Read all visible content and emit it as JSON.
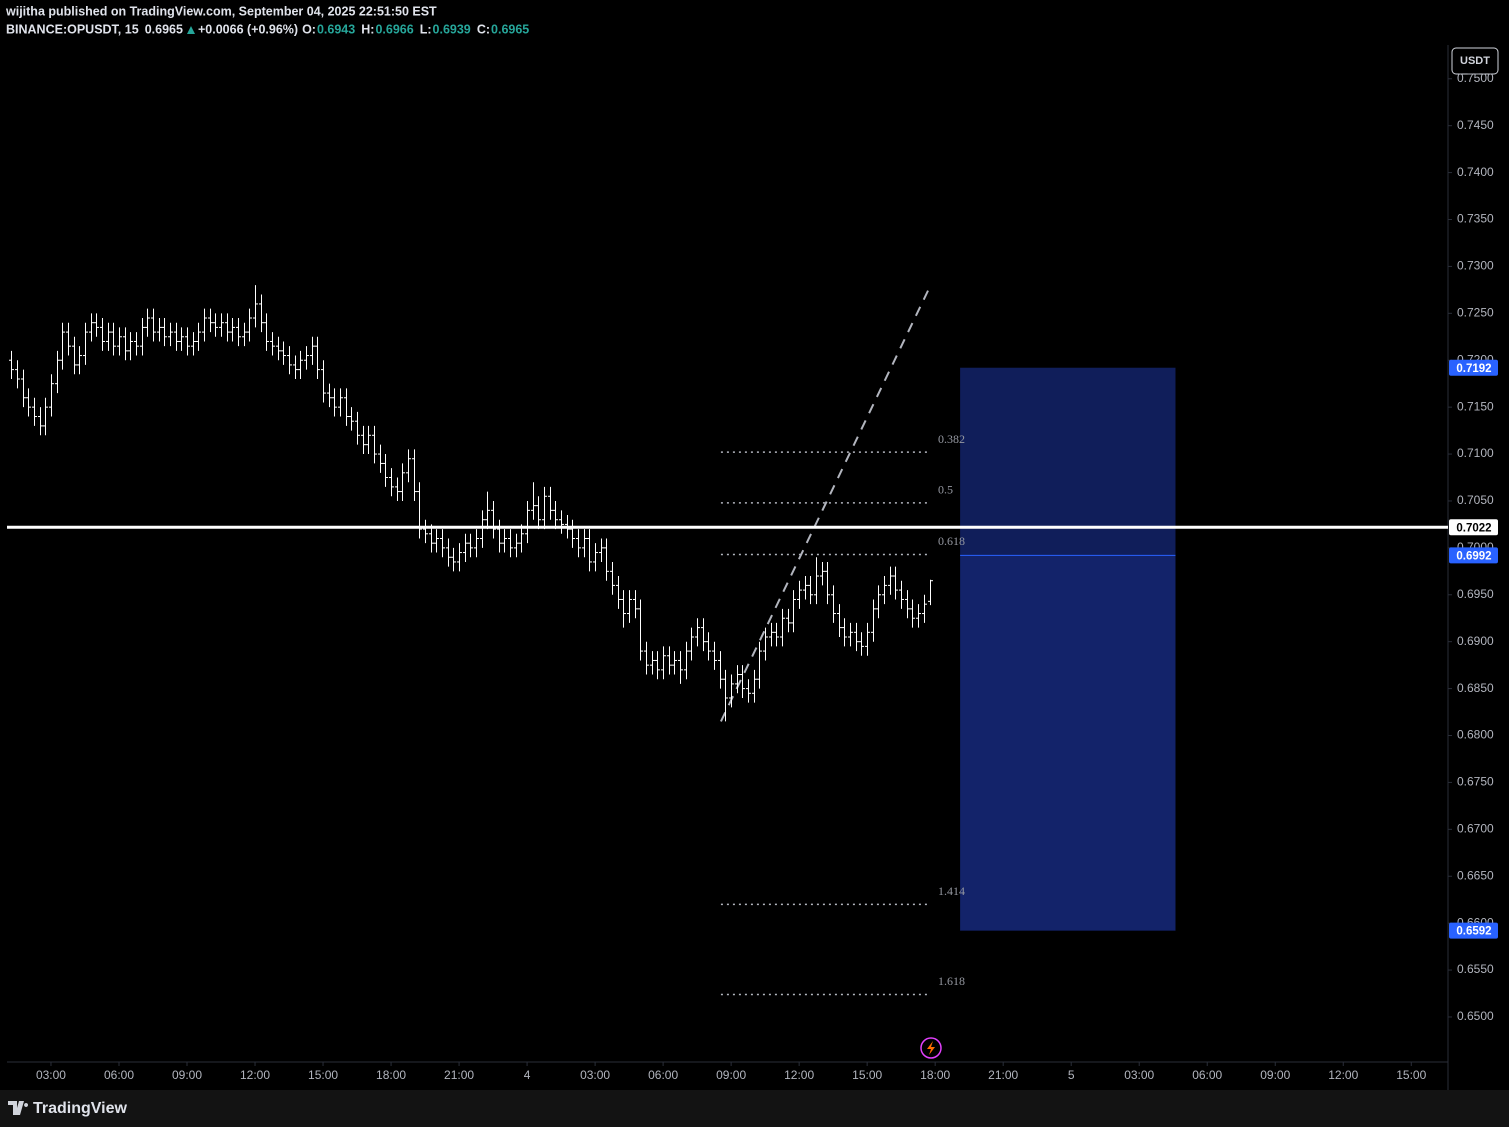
{
  "header": {
    "published": "wijitha published on TradingView.com, September 04, 2025 22:51:50 EST",
    "symbol": "BINANCE:OPUSDT, 15",
    "last": "0.6965",
    "change": "+0.0066 (+0.96%)",
    "ohlc": [
      {
        "label": "O:",
        "value": "0.6943"
      },
      {
        "label": "H:",
        "value": "0.6966"
      },
      {
        "label": "L:",
        "value": "0.6939"
      },
      {
        "label": "C:",
        "value": "0.6965"
      }
    ]
  },
  "currency": "USDT",
  "footer": {
    "brand": "TradingView"
  },
  "chart_data": {
    "type": "ohlc",
    "color": "#ffffff",
    "x": [
      1.25,
      1.5,
      1.75,
      2,
      2.25,
      2.5,
      2.75,
      3,
      3.25,
      3.5,
      3.75,
      4,
      4.25,
      4.5,
      4.75,
      5,
      5.25,
      5.5,
      5.75,
      6,
      6.25,
      6.5,
      6.75,
      7,
      7.25,
      7.5,
      7.75,
      8,
      8.25,
      8.5,
      8.75,
      9,
      9.25,
      9.5,
      9.75,
      10,
      10.25,
      10.5,
      10.75,
      11,
      11.25,
      11.5,
      11.75,
      12,
      12.25,
      12.5,
      12.75,
      13,
      13.25,
      13.5,
      13.75,
      14,
      14.25,
      14.5,
      14.75,
      15,
      15.25,
      15.5,
      15.75,
      16,
      16.25,
      16.5,
      16.75,
      17,
      17.25,
      17.5,
      17.75,
      18,
      18.25,
      18.5,
      18.75,
      19,
      19.25,
      19.5,
      19.75,
      20,
      20.25,
      20.5,
      20.75,
      21,
      21.25,
      21.5,
      21.75,
      22,
      22.25,
      22.5,
      22.75,
      23,
      23.25,
      23.5,
      23.75,
      24,
      24.25,
      24.5,
      24.75,
      25,
      25.25,
      25.5,
      25.75,
      26,
      26.25,
      26.5,
      26.75,
      27,
      27.25,
      27.5,
      27.75,
      28,
      28.25,
      28.5,
      28.75,
      29,
      29.25,
      29.5,
      29.75,
      30,
      30.25,
      30.5,
      30.75,
      31,
      31.25,
      31.5,
      31.75,
      32,
      32.25,
      32.5,
      32.75,
      33,
      33.25,
      33.5,
      33.75,
      34,
      34.25,
      34.5,
      34.75,
      35,
      35.25,
      35.5,
      35.75,
      36,
      36.25,
      36.5,
      36.75,
      37,
      37.25,
      37.5,
      37.75,
      38,
      38.25,
      38.5,
      38.75,
      39,
      39.25,
      39.5,
      39.75,
      40,
      40.25,
      40.5,
      40.75,
      41,
      41.25,
      41.5,
      41.75
    ],
    "open": [
      0.72,
      0.719,
      0.718,
      0.716,
      0.715,
      0.714,
      0.713,
      0.715,
      0.7175,
      0.72,
      0.723,
      0.7215,
      0.7195,
      0.7205,
      0.723,
      0.724,
      0.7235,
      0.722,
      0.723,
      0.7215,
      0.7225,
      0.721,
      0.722,
      0.7215,
      0.7235,
      0.7245,
      0.723,
      0.7235,
      0.7225,
      0.723,
      0.722,
      0.7225,
      0.7215,
      0.722,
      0.723,
      0.7245,
      0.724,
      0.7235,
      0.724,
      0.723,
      0.7235,
      0.7225,
      0.723,
      0.7245,
      0.726,
      0.724,
      0.722,
      0.7215,
      0.721,
      0.7205,
      0.7195,
      0.719,
      0.72,
      0.7205,
      0.7215,
      0.719,
      0.7165,
      0.716,
      0.715,
      0.716,
      0.714,
      0.7135,
      0.712,
      0.711,
      0.712,
      0.71,
      0.709,
      0.7075,
      0.7065,
      0.706,
      0.708,
      0.7095,
      0.706,
      0.702,
      0.7015,
      0.7005,
      0.701,
      0.7,
      0.699,
      0.6985,
      0.6995,
      0.7005,
      0.7,
      0.701,
      0.703,
      0.704,
      0.702,
      0.7005,
      0.701,
      0.7,
      0.7005,
      0.7015,
      0.704,
      0.7045,
      0.703,
      0.7055,
      0.704,
      0.703,
      0.7025,
      0.702,
      0.701,
      0.7,
      0.701,
      0.6985,
      0.6995,
      0.7,
      0.6975,
      0.696,
      0.6945,
      0.693,
      0.6945,
      0.6935,
      0.689,
      0.6875,
      0.688,
      0.687,
      0.6885,
      0.6875,
      0.688,
      0.687,
      0.689,
      0.6905,
      0.6915,
      0.69,
      0.689,
      0.688,
      0.686,
      0.684,
      0.6855,
      0.6865,
      0.685,
      0.6845,
      0.686,
      0.689,
      0.6905,
      0.691,
      0.6905,
      0.6925,
      0.692,
      0.6945,
      0.6955,
      0.696,
      0.695,
      0.697,
      0.6975,
      0.695,
      0.693,
      0.6915,
      0.6905,
      0.691,
      0.69,
      0.6895,
      0.691,
      0.6935,
      0.695,
      0.696,
      0.697,
      0.6955,
      0.6945,
      0.6935,
      0.6925,
      0.693,
      0.6943
    ],
    "high": [
      0.721,
      0.72,
      0.719,
      0.717,
      0.716,
      0.715,
      0.716,
      0.7185,
      0.721,
      0.724,
      0.724,
      0.7225,
      0.7215,
      0.724,
      0.725,
      0.725,
      0.7245,
      0.724,
      0.724,
      0.7235,
      0.7235,
      0.723,
      0.723,
      0.7245,
      0.7255,
      0.7255,
      0.7245,
      0.7245,
      0.724,
      0.724,
      0.7235,
      0.7235,
      0.723,
      0.724,
      0.7255,
      0.7255,
      0.725,
      0.725,
      0.725,
      0.7245,
      0.7245,
      0.724,
      0.7255,
      0.728,
      0.727,
      0.725,
      0.723,
      0.7225,
      0.722,
      0.7215,
      0.7205,
      0.721,
      0.7215,
      0.7225,
      0.7225,
      0.72,
      0.7175,
      0.717,
      0.717,
      0.717,
      0.715,
      0.7145,
      0.713,
      0.713,
      0.713,
      0.711,
      0.71,
      0.7085,
      0.7075,
      0.709,
      0.7105,
      0.7105,
      0.707,
      0.703,
      0.7025,
      0.702,
      0.702,
      0.701,
      0.7,
      0.7005,
      0.7015,
      0.7015,
      0.702,
      0.704,
      0.706,
      0.705,
      0.703,
      0.702,
      0.702,
      0.7015,
      0.7025,
      0.705,
      0.707,
      0.7055,
      0.7065,
      0.7065,
      0.705,
      0.704,
      0.7035,
      0.703,
      0.702,
      0.702,
      0.702,
      0.7005,
      0.701,
      0.701,
      0.6985,
      0.697,
      0.6955,
      0.6955,
      0.6955,
      0.6945,
      0.69,
      0.689,
      0.689,
      0.6895,
      0.6895,
      0.689,
      0.689,
      0.69,
      0.6915,
      0.6925,
      0.6925,
      0.691,
      0.69,
      0.689,
      0.687,
      0.6865,
      0.6875,
      0.6875,
      0.686,
      0.687,
      0.69,
      0.6915,
      0.692,
      0.692,
      0.6935,
      0.6935,
      0.6955,
      0.6965,
      0.697,
      0.697,
      0.699,
      0.6985,
      0.6985,
      0.696,
      0.694,
      0.6925,
      0.692,
      0.692,
      0.691,
      0.692,
      0.6945,
      0.696,
      0.697,
      0.698,
      0.698,
      0.6965,
      0.6955,
      0.6945,
      0.694,
      0.695,
      0.6966
    ],
    "low": [
      0.718,
      0.717,
      0.715,
      0.714,
      0.713,
      0.712,
      0.712,
      0.714,
      0.7165,
      0.719,
      0.7205,
      0.7185,
      0.7185,
      0.7195,
      0.722,
      0.7225,
      0.721,
      0.721,
      0.7205,
      0.7205,
      0.72,
      0.72,
      0.7205,
      0.7205,
      0.7225,
      0.722,
      0.722,
      0.7215,
      0.7215,
      0.721,
      0.721,
      0.7205,
      0.7205,
      0.721,
      0.722,
      0.723,
      0.7225,
      0.7225,
      0.722,
      0.722,
      0.7215,
      0.7215,
      0.722,
      0.7235,
      0.723,
      0.721,
      0.7205,
      0.72,
      0.7195,
      0.7185,
      0.718,
      0.718,
      0.719,
      0.7195,
      0.718,
      0.7155,
      0.715,
      0.714,
      0.714,
      0.713,
      0.7125,
      0.711,
      0.71,
      0.71,
      0.709,
      0.708,
      0.7065,
      0.7055,
      0.705,
      0.705,
      0.707,
      0.705,
      0.701,
      0.7005,
      0.6995,
      0.6995,
      0.699,
      0.698,
      0.6975,
      0.6975,
      0.6985,
      0.699,
      0.699,
      0.7,
      0.702,
      0.701,
      0.6995,
      0.6995,
      0.699,
      0.699,
      0.6995,
      0.7005,
      0.703,
      0.702,
      0.702,
      0.703,
      0.702,
      0.7015,
      0.701,
      0.7,
      0.699,
      0.699,
      0.6975,
      0.6975,
      0.6985,
      0.6965,
      0.695,
      0.6935,
      0.6915,
      0.692,
      0.6925,
      0.688,
      0.6865,
      0.6865,
      0.686,
      0.686,
      0.6865,
      0.6865,
      0.6855,
      0.686,
      0.688,
      0.6895,
      0.689,
      0.688,
      0.687,
      0.685,
      0.6815,
      0.683,
      0.6845,
      0.684,
      0.6835,
      0.6835,
      0.685,
      0.688,
      0.6895,
      0.6895,
      0.6895,
      0.691,
      0.691,
      0.6935,
      0.6945,
      0.694,
      0.694,
      0.696,
      0.694,
      0.692,
      0.6905,
      0.6895,
      0.6895,
      0.689,
      0.6885,
      0.6885,
      0.69,
      0.6925,
      0.694,
      0.695,
      0.6945,
      0.6935,
      0.6925,
      0.6915,
      0.6915,
      0.692,
      0.6939
    ],
    "close": [
      0.719,
      0.718,
      0.716,
      0.715,
      0.714,
      0.713,
      0.715,
      0.7175,
      0.72,
      0.723,
      0.7215,
      0.7195,
      0.7205,
      0.723,
      0.724,
      0.7235,
      0.722,
      0.723,
      0.7215,
      0.7225,
      0.721,
      0.722,
      0.7215,
      0.7235,
      0.7245,
      0.723,
      0.7235,
      0.7225,
      0.723,
      0.722,
      0.7225,
      0.7215,
      0.722,
      0.723,
      0.7245,
      0.724,
      0.7235,
      0.724,
      0.723,
      0.7235,
      0.7225,
      0.723,
      0.7245,
      0.726,
      0.724,
      0.722,
      0.7215,
      0.721,
      0.7205,
      0.7195,
      0.719,
      0.72,
      0.7205,
      0.7215,
      0.719,
      0.7165,
      0.716,
      0.715,
      0.716,
      0.714,
      0.7135,
      0.712,
      0.711,
      0.712,
      0.71,
      0.709,
      0.7075,
      0.7065,
      0.706,
      0.708,
      0.7095,
      0.706,
      0.702,
      0.7015,
      0.7005,
      0.701,
      0.7,
      0.699,
      0.6985,
      0.6995,
      0.7005,
      0.7,
      0.701,
      0.703,
      0.704,
      0.702,
      0.7005,
      0.701,
      0.7,
      0.7005,
      0.7015,
      0.704,
      0.7045,
      0.703,
      0.7055,
      0.704,
      0.703,
      0.7025,
      0.702,
      0.701,
      0.7,
      0.701,
      0.6985,
      0.6995,
      0.7,
      0.6975,
      0.696,
      0.6945,
      0.693,
      0.6945,
      0.6935,
      0.689,
      0.6875,
      0.688,
      0.687,
      0.6885,
      0.6875,
      0.688,
      0.687,
      0.689,
      0.6905,
      0.6915,
      0.69,
      0.689,
      0.688,
      0.686,
      0.684,
      0.6855,
      0.6865,
      0.685,
      0.6845,
      0.686,
      0.689,
      0.6905,
      0.691,
      0.6905,
      0.6925,
      0.692,
      0.6945,
      0.6955,
      0.696,
      0.695,
      0.697,
      0.6975,
      0.695,
      0.693,
      0.6915,
      0.6905,
      0.691,
      0.69,
      0.6895,
      0.691,
      0.6935,
      0.695,
      0.696,
      0.697,
      0.6955,
      0.6945,
      0.6935,
      0.6925,
      0.693,
      0.694,
      0.6965
    ],
    "xlim": [
      1.06,
      64.62
    ],
    "ylim": [
      0.6452,
      0.7536
    ],
    "xticks": [
      {
        "value": 3,
        "label": "03:00"
      },
      {
        "value": 6,
        "label": "06:00"
      },
      {
        "value": 9,
        "label": "09:00"
      },
      {
        "value": 12,
        "label": "12:00"
      },
      {
        "value": 15,
        "label": "15:00"
      },
      {
        "value": 18,
        "label": "18:00"
      },
      {
        "value": 21,
        "label": "21:00"
      },
      {
        "value": 24,
        "label": "4"
      },
      {
        "value": 27,
        "label": "03:00"
      },
      {
        "value": 30,
        "label": "06:00"
      },
      {
        "value": 33,
        "label": "09:00"
      },
      {
        "value": 36,
        "label": "12:00"
      },
      {
        "value": 39,
        "label": "15:00"
      },
      {
        "value": 42,
        "label": "18:00"
      },
      {
        "value": 45,
        "label": "21:00"
      },
      {
        "value": 48,
        "label": "5"
      },
      {
        "value": 51,
        "label": "03:00"
      },
      {
        "value": 54,
        "label": "06:00"
      },
      {
        "value": 57,
        "label": "09:00"
      },
      {
        "value": 60,
        "label": "12:00"
      },
      {
        "value": 63,
        "label": "15:00"
      }
    ],
    "yticks": [
      {
        "value": 0.75,
        "label": "0.7500"
      },
      {
        "value": 0.745,
        "label": "0.7450"
      },
      {
        "value": 0.74,
        "label": "0.7400"
      },
      {
        "value": 0.735,
        "label": "0.7350"
      },
      {
        "value": 0.73,
        "label": "0.7300"
      },
      {
        "value": 0.725,
        "label": "0.7250"
      },
      {
        "value": 0.72,
        "label": "0.7200"
      },
      {
        "value": 0.715,
        "label": "0.7150"
      },
      {
        "value": 0.71,
        "label": "0.7100"
      },
      {
        "value": 0.705,
        "label": "0.7050"
      },
      {
        "value": 0.7,
        "label": "0.7000"
      },
      {
        "value": 0.695,
        "label": "0.6950"
      },
      {
        "value": 0.69,
        "label": "0.6900"
      },
      {
        "value": 0.685,
        "label": "0.6850"
      },
      {
        "value": 0.68,
        "label": "0.6800"
      },
      {
        "value": 0.675,
        "label": "0.6750"
      },
      {
        "value": 0.67,
        "label": "0.6700"
      },
      {
        "value": 0.665,
        "label": "0.6650"
      },
      {
        "value": 0.66,
        "label": "0.6600"
      },
      {
        "value": 0.655,
        "label": "0.6550"
      },
      {
        "value": 0.65,
        "label": "0.6500"
      }
    ],
    "horizontal_line": {
      "value": 0.7022,
      "color": "#ffffff"
    },
    "box": {
      "top": 0.7192,
      "mid": 0.6992,
      "bottom": 0.6592,
      "x": [
        43.1,
        52.6
      ],
      "color": "#13236a"
    },
    "fib_levels": [
      {
        "label": "0.382",
        "value": 0.7102
      },
      {
        "label": "0.5",
        "value": 0.7048
      },
      {
        "label": "0.618",
        "value": 0.6993
      },
      {
        "label": "1.414",
        "value": 0.662
      },
      {
        "label": "1.618",
        "value": 0.6524
      }
    ],
    "fib_x": [
      32.55,
      41.64
    ],
    "trend_line": {
      "x": [
        32.55,
        41.8
      ],
      "y": [
        0.6815,
        0.728
      ]
    },
    "price_badges": [
      {
        "value": 0.7192,
        "color": "#2962ff"
      },
      {
        "value": 0.7022,
        "color": "#ffffff"
      },
      {
        "value": 0.6992,
        "color": "#2962ff"
      },
      {
        "value": 0.6592,
        "color": "#2962ff"
      }
    ]
  }
}
